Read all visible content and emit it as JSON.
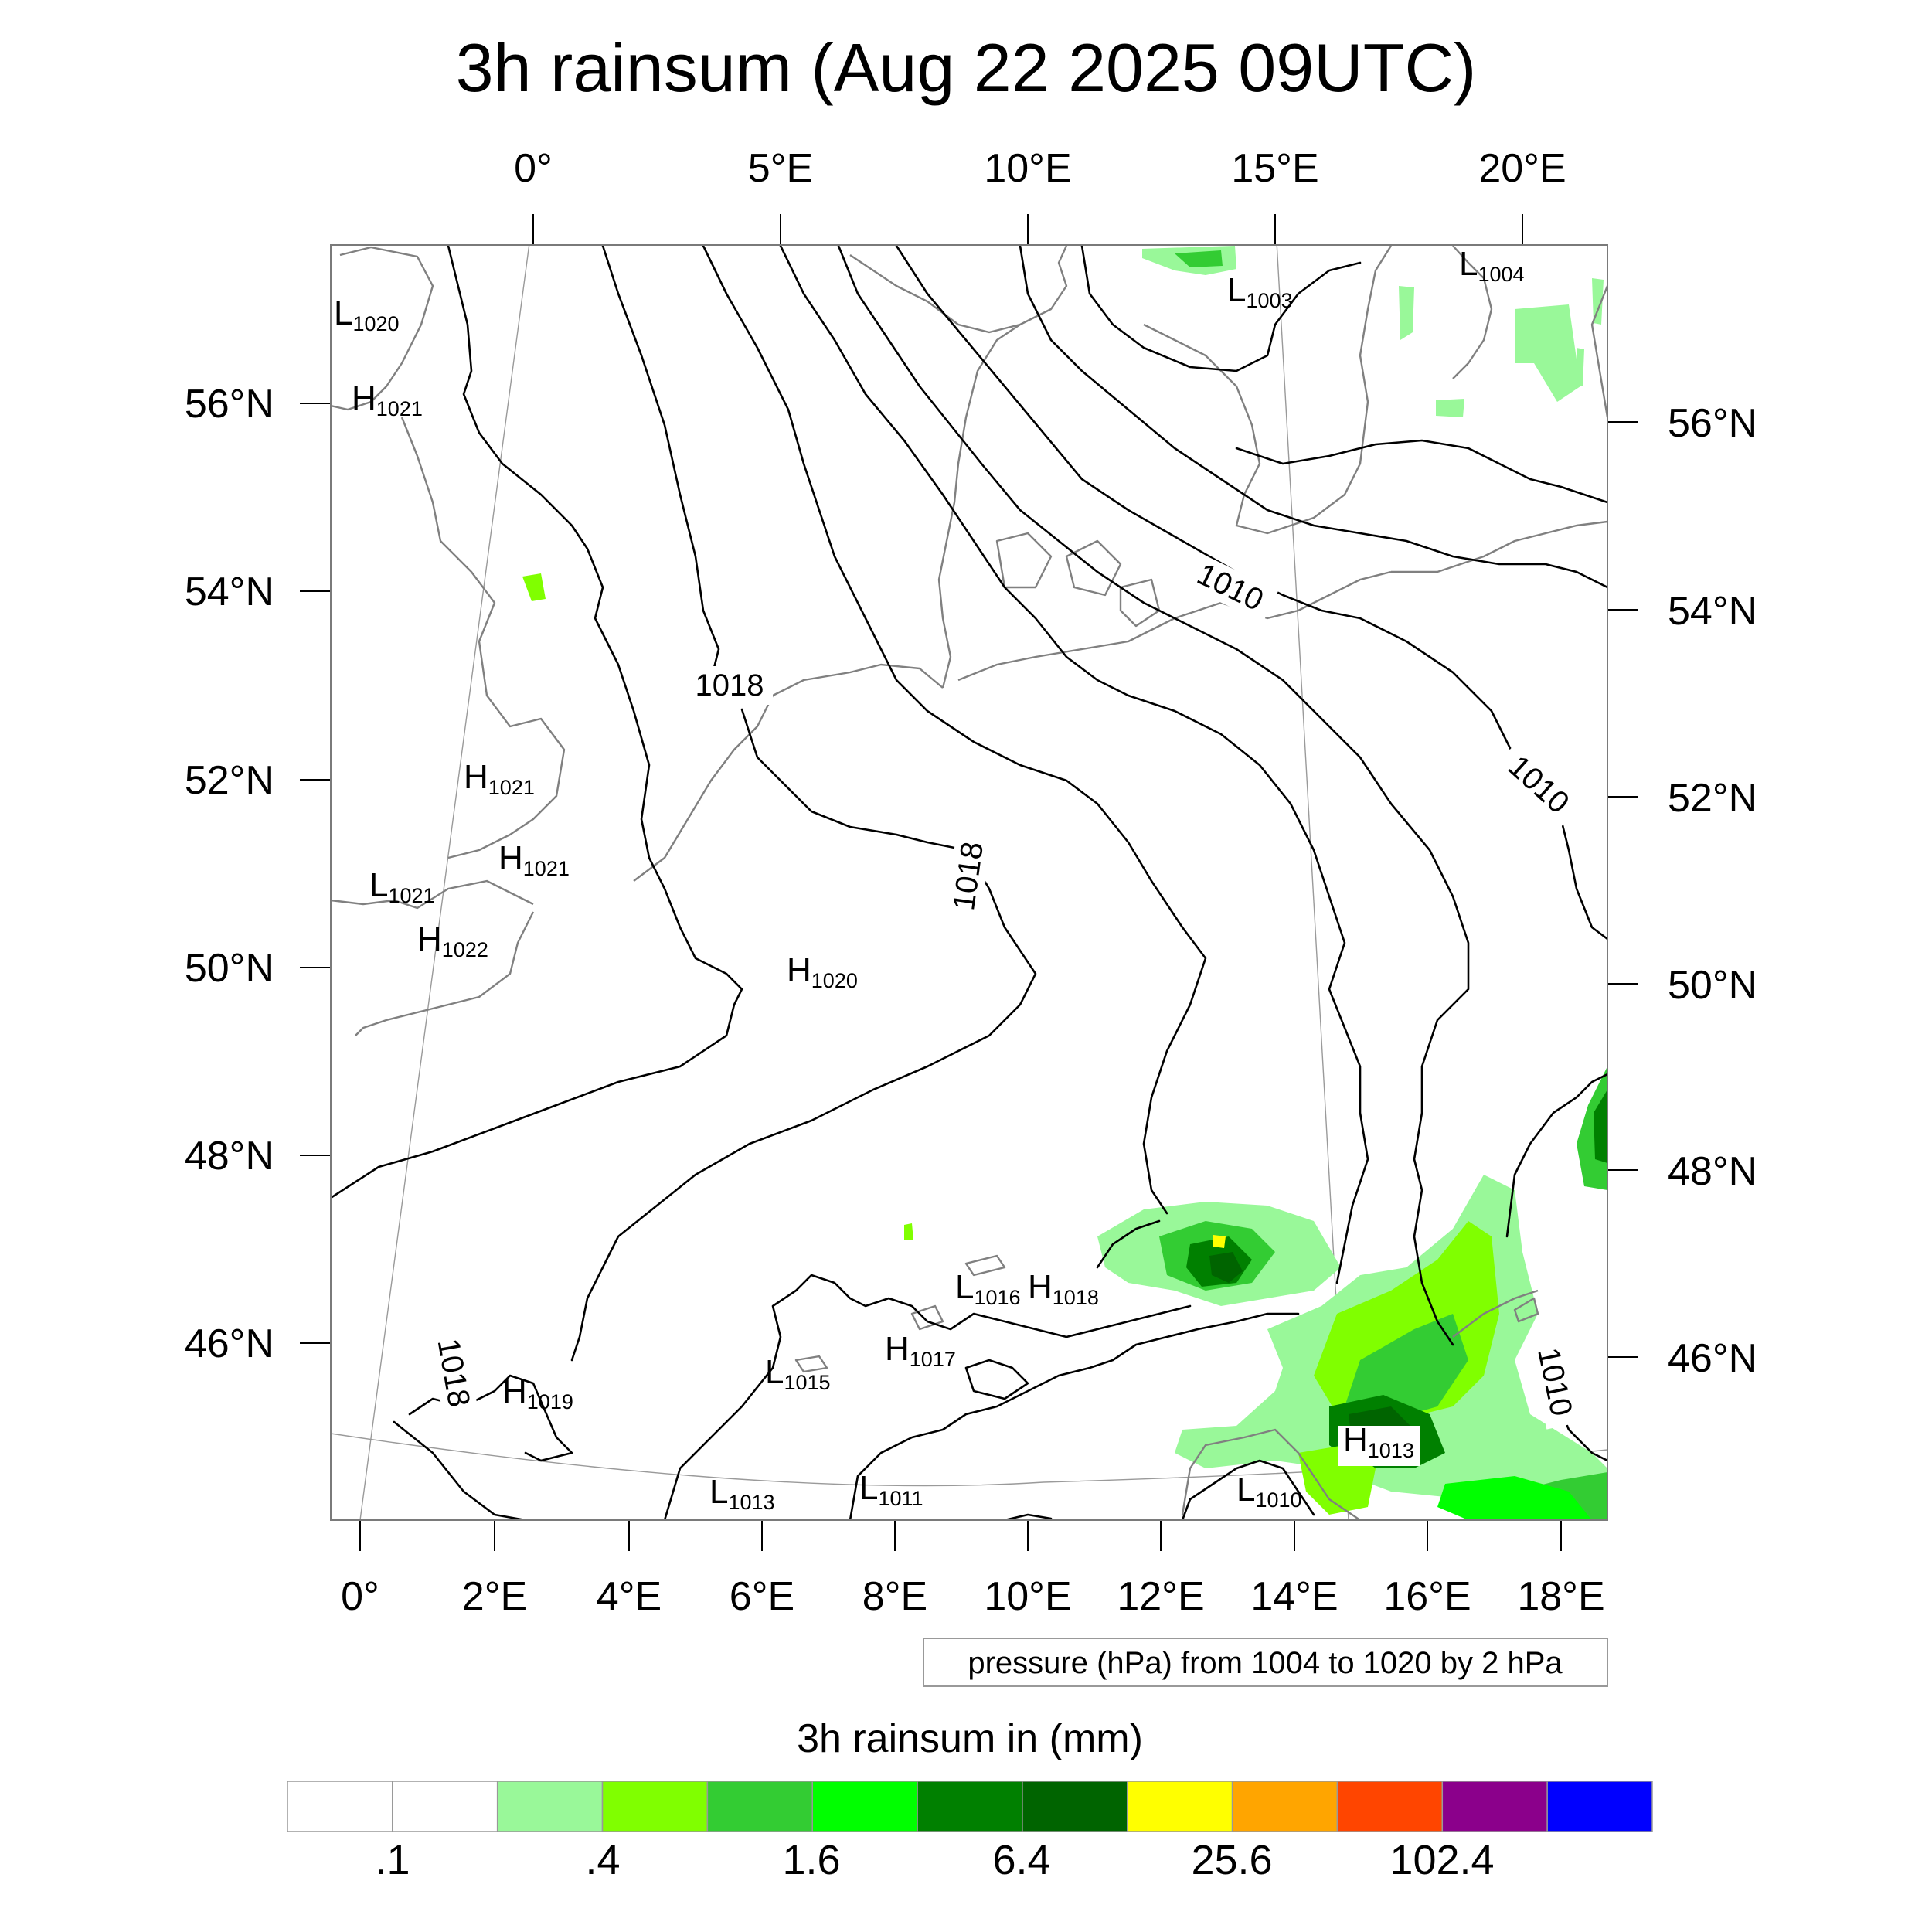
{
  "title": "3h rainsum (Aug 22 2025 09UTC)",
  "top_axis_labels": [
    "0°",
    "5°E",
    "10°E",
    "15°E",
    "20°E"
  ],
  "bottom_axis_labels": [
    "0°",
    "2°E",
    "4°E",
    "6°E",
    "8°E",
    "10°E",
    "12°E",
    "14°E",
    "16°E",
    "18°E"
  ],
  "left_axis_labels": [
    "56°N",
    "54°N",
    "52°N",
    "50°N",
    "48°N",
    "46°N"
  ],
  "right_axis_labels": [
    "56°N",
    "54°N",
    "52°N",
    "50°N",
    "48°N",
    "46°N"
  ],
  "pressure_centers": [
    {
      "type": "L",
      "value": "1020"
    },
    {
      "type": "H",
      "value": "1021"
    },
    {
      "type": "H",
      "value": "1021"
    },
    {
      "type": "H",
      "value": "1021"
    },
    {
      "type": "L",
      "value": "1021"
    },
    {
      "type": "H",
      "value": "1022"
    },
    {
      "type": "H",
      "value": "1020"
    },
    {
      "type": "L",
      "value": "1003"
    },
    {
      "type": "L",
      "value": "1004"
    },
    {
      "type": "L",
      "value": "1016"
    },
    {
      "type": "H",
      "value": "1018"
    },
    {
      "type": "H",
      "value": "1017"
    },
    {
      "type": "L",
      "value": "1015"
    },
    {
      "type": "H",
      "value": "1019"
    },
    {
      "type": "L",
      "value": "1013"
    },
    {
      "type": "L",
      "value": "1011"
    },
    {
      "type": "H",
      "value": "1013"
    },
    {
      "type": "L",
      "value": "1010"
    }
  ],
  "isobar_labels": [
    "1018",
    "1010",
    "1010",
    "1018",
    "1018",
    "1010"
  ],
  "contour_note": "pressure (hPa) from 1004 to 1020 by 2 hPa",
  "colorbar": {
    "title": "3h rainsum in (mm)",
    "colors": [
      "#ffffff",
      "#ffffff",
      "#99f899",
      "#80ff00",
      "#33cc33",
      "#00ff00",
      "#008000",
      "#006400",
      "#ffff00",
      "#ffa500",
      "#ff4500",
      "#8b008b",
      "#0000ff"
    ],
    "labels": [
      ".1",
      ".4",
      "1.6",
      "6.4",
      "25.6",
      "102.4"
    ]
  }
}
